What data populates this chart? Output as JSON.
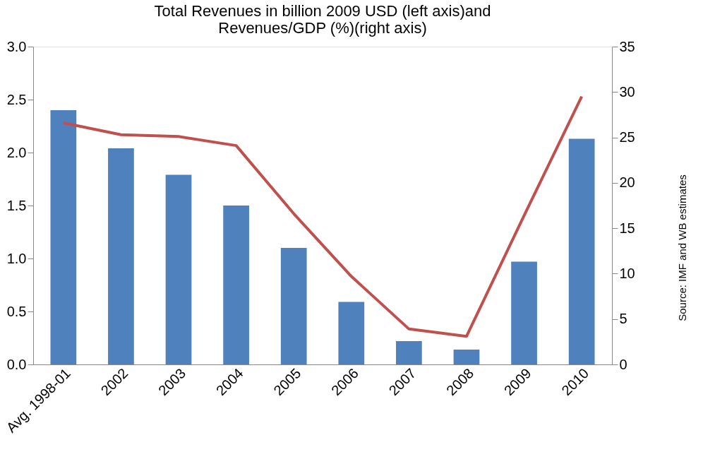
{
  "chart_data": {
    "type": "bar",
    "title": "Total Revenues in billion 2009 USD (left axis)and\nRevenues/GDP (%)(right axis)",
    "categories": [
      "Avg. 1998-01",
      "2002",
      "2003",
      "2004",
      "2005",
      "2006",
      "2007",
      "2008",
      "2009",
      "2010"
    ],
    "series": [
      {
        "color": "#4f81bd",
        "values": [
          2.4,
          2.04,
          1.79,
          1.5,
          1.1,
          0.59,
          0.22,
          0.14,
          0.97,
          2.13
        ]
      },
      {
        "type": "line",
        "axis": "y2",
        "color": "#c0504d",
        "values": [
          26.6,
          25.3,
          25.1,
          24.1,
          16.6,
          9.7,
          3.9,
          3.1,
          16.4,
          29.5
        ]
      }
    ],
    "ylim": [
      0,
      3.0
    ],
    "yticks": [
      {
        "value": 0,
        "label": "0.0"
      },
      {
        "value": 0.5,
        "label": "0.5"
      },
      {
        "value": 1.0,
        "label": "1.0"
      },
      {
        "value": 1.5,
        "label": "1.5"
      },
      {
        "value": 2.0,
        "label": "2.0"
      },
      {
        "value": 2.5,
        "label": "2.5"
      },
      {
        "value": 3.0,
        "label": "3.0"
      }
    ],
    "y2lim": [
      0,
      35
    ],
    "y2ticks": [
      0,
      5,
      10,
      15,
      20,
      25,
      30,
      35
    ],
    "annotations": [
      "Source: IMF and WB estimates"
    ],
    "grid": false,
    "marker": "none",
    "line_style": "solid"
  }
}
